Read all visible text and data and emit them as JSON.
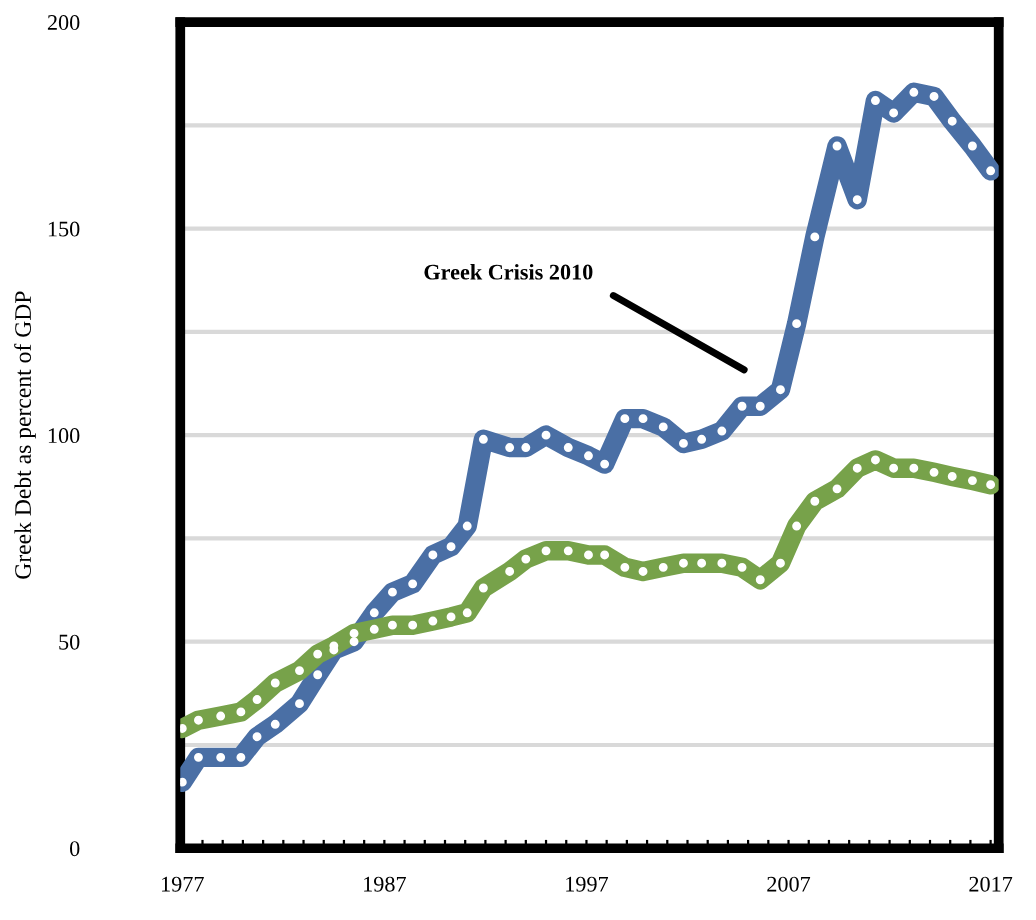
{
  "chart_data": {
    "type": "line",
    "ylabel": "Greek Debt as percent of GDP",
    "annotations": [
      "Greek Crisis 2010"
    ],
    "series": [
      {
        "color": "#4a6fa5",
        "x": [
          1977.0,
          1977.8,
          1978.9,
          1979.9,
          1980.7,
          1981.6,
          1982.8,
          1983.7,
          1984.5,
          1985.5,
          1986.5,
          1987.4,
          1988.4,
          1989.4,
          1990.3,
          1991.1,
          1991.9,
          1993.2,
          1994.0,
          1995.0,
          1996.1,
          1997.1,
          1997.9,
          1998.9,
          1999.8,
          2000.8,
          2001.8,
          2002.7,
          2003.7,
          2004.7,
          2005.6,
          2006.6,
          2007.4,
          2008.3,
          2009.4,
          2010.4,
          2011.3,
          2012.2,
          2013.2,
          2014.2,
          2015.1,
          2016.1,
          2017.0
        ],
        "values": [
          16,
          22,
          22,
          22,
          27,
          30,
          35,
          42,
          48,
          50,
          57,
          62,
          64,
          71,
          73,
          78,
          99,
          97,
          97,
          100,
          97,
          95,
          93,
          104,
          104,
          102,
          98,
          99,
          101,
          107,
          107,
          111,
          127,
          148,
          170,
          157,
          181,
          178,
          183,
          182,
          176,
          170,
          164
        ]
      },
      {
        "color": "#77a24a",
        "x": [
          1977.0,
          1977.8,
          1978.9,
          1979.9,
          1980.7,
          1981.6,
          1982.8,
          1983.7,
          1984.5,
          1985.5,
          1986.5,
          1987.4,
          1988.4,
          1989.4,
          1990.3,
          1991.1,
          1991.9,
          1993.2,
          1994.0,
          1995.0,
          1996.1,
          1997.1,
          1997.9,
          1998.9,
          1999.8,
          2000.8,
          2001.8,
          2002.7,
          2003.7,
          2004.7,
          2005.6,
          2006.6,
          2007.4,
          2008.3,
          2009.4,
          2010.4,
          2011.3,
          2012.2,
          2013.2,
          2014.2,
          2015.1,
          2016.1,
          2017.0
        ],
        "values": [
          29,
          31,
          32,
          33,
          36,
          40,
          43,
          47,
          49,
          52,
          53,
          54,
          54,
          55,
          56,
          57,
          63,
          67,
          70,
          72,
          72,
          71,
          71,
          68,
          67,
          68,
          69,
          69,
          69,
          68,
          65,
          69,
          78,
          84,
          87,
          92,
          94,
          92,
          92,
          91,
          90,
          89,
          88
        ]
      }
    ],
    "xlim": [
      1976.9,
      2017.4
    ],
    "xticks": [
      1977,
      {
        "value": 1978,
        "label": null
      },
      {
        "value": 1979,
        "label": null
      },
      {
        "value": 1980,
        "label": null
      },
      {
        "value": 1981,
        "label": null
      },
      {
        "value": 1982,
        "label": null
      },
      {
        "value": 1983,
        "label": null
      },
      {
        "value": 1984,
        "label": null
      },
      {
        "value": 1985,
        "label": null
      },
      {
        "value": 1986,
        "label": null
      },
      1987,
      {
        "value": 1988,
        "label": null
      },
      {
        "value": 1989,
        "label": null
      },
      {
        "value": 1990,
        "label": null
      },
      {
        "value": 1991,
        "label": null
      },
      {
        "value": 1992,
        "label": null
      },
      {
        "value": 1993,
        "label": null
      },
      {
        "value": 1994,
        "label": null
      },
      {
        "value": 1995,
        "label": null
      },
      {
        "value": 1996,
        "label": null
      },
      1997,
      {
        "value": 1998,
        "label": null
      },
      {
        "value": 1999,
        "label": null
      },
      {
        "value": 2000,
        "label": null
      },
      {
        "value": 2001,
        "label": null
      },
      {
        "value": 2002,
        "label": null
      },
      {
        "value": 2003,
        "label": null
      },
      {
        "value": 2004,
        "label": null
      },
      {
        "value": 2005,
        "label": null
      },
      {
        "value": 2006,
        "label": null
      },
      2007,
      {
        "value": 2008,
        "label": null
      },
      {
        "value": 2009,
        "label": null
      },
      {
        "value": 2010,
        "label": null
      },
      {
        "value": 2011,
        "label": null
      },
      {
        "value": 2012,
        "label": null
      },
      {
        "value": 2013,
        "label": null
      },
      {
        "value": 2014,
        "label": null
      },
      {
        "value": 2015,
        "label": null
      },
      {
        "value": 2016,
        "label": null
      },
      2017
    ],
    "ylim": [
      0,
      200
    ],
    "yticks": [
      0,
      {
        "value": 25,
        "label": null
      },
      50,
      {
        "value": 75,
        "label": null
      },
      100,
      {
        "value": 125,
        "label": null
      },
      150,
      {
        "value": 175,
        "label": null
      },
      200
    ],
    "grid": "y",
    "marker": "circle",
    "line_style": "solid",
    "legend": false
  }
}
